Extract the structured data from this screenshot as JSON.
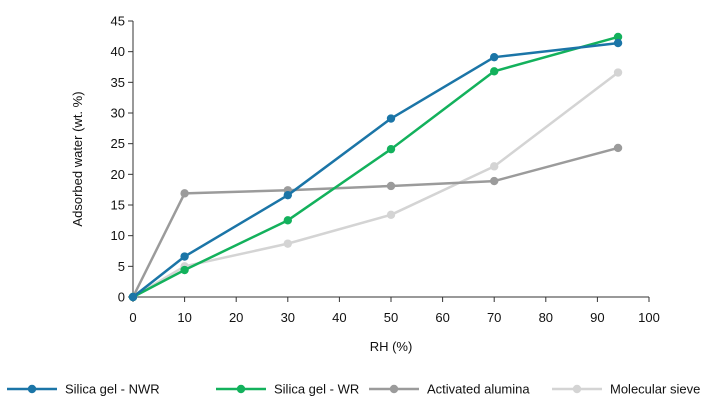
{
  "chart_data": {
    "type": "line",
    "title": "",
    "xlabel": "RH (%)",
    "ylabel": "Adsorbed water (wt. %)",
    "xlim": [
      0,
      100
    ],
    "ylim": [
      0,
      45
    ],
    "xticks": [
      0,
      10,
      20,
      30,
      40,
      50,
      60,
      70,
      80,
      90,
      100
    ],
    "yticks": [
      0,
      5,
      10,
      15,
      20,
      25,
      30,
      35,
      40,
      45
    ],
    "grid": false,
    "legend_position": "bottom",
    "series": [
      {
        "name": "Silica gel - NWR",
        "color": "#1b75a7",
        "x": [
          0,
          10,
          30,
          50,
          70,
          94
        ],
        "y": [
          0,
          6.6,
          16.6,
          29.1,
          39.1,
          41.4
        ]
      },
      {
        "name": "Silica gel - WR",
        "color": "#13b15c",
        "x": [
          0,
          10,
          30,
          50,
          70,
          94
        ],
        "y": [
          0,
          4.4,
          12.5,
          24.1,
          36.8,
          42.4
        ]
      },
      {
        "name": "Activated alumina",
        "color": "#9b9b9b",
        "x": [
          0,
          10,
          30,
          50,
          70,
          94
        ],
        "y": [
          0,
          16.9,
          17.4,
          18.1,
          18.9,
          24.3
        ]
      },
      {
        "name": "Molecular sieve",
        "color": "#d4d4d4",
        "x": [
          0,
          10,
          30,
          50,
          70,
          94
        ],
        "y": [
          0,
          5.0,
          8.7,
          13.4,
          21.3,
          36.6
        ]
      }
    ]
  }
}
